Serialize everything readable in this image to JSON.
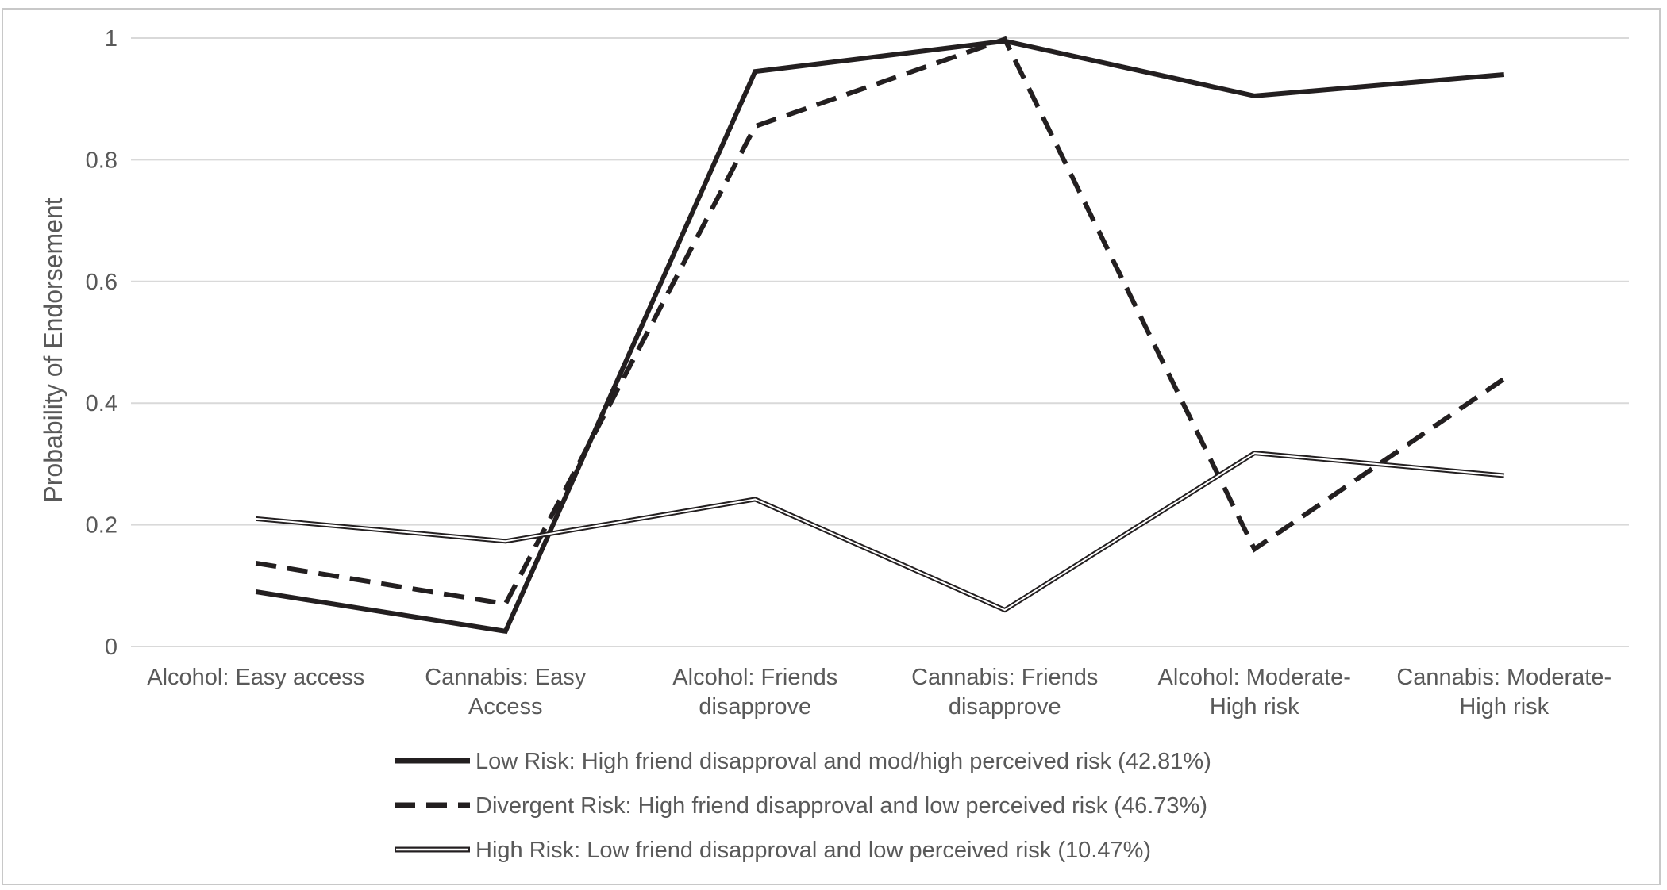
{
  "chart_data": {
    "type": "line",
    "title": "",
    "xlabel": "",
    "ylabel": "Probability of Endorsement",
    "ylim": [
      0,
      1
    ],
    "yticks": [
      "0",
      "0.2",
      "0.4",
      "0.6",
      "0.8",
      "1"
    ],
    "ytick_values": [
      0,
      0.2,
      0.4,
      0.6,
      0.8,
      1
    ],
    "grid": true,
    "legend_position": "bottom",
    "categories": [
      [
        "Alcohol: Easy access"
      ],
      [
        "Cannabis: Easy",
        "Access"
      ],
      [
        "Alcohol: Friends",
        "disapprove"
      ],
      [
        "Cannabis: Friends",
        "disapprove"
      ],
      [
        "Alcohol: Moderate-",
        "High risk"
      ],
      [
        "Cannabis: Moderate-",
        "High risk"
      ]
    ],
    "series": [
      {
        "name": "Low Risk: High friend disapproval and mod/high perceived risk (42.81%)",
        "style": "solid",
        "color": "#231f20",
        "values": [
          0.09,
          0.025,
          0.945,
          0.995,
          0.905,
          0.94
        ]
      },
      {
        "name": "Divergent Risk: High friend disapproval and low perceived risk (46.73%)",
        "style": "dashed",
        "color": "#231f20",
        "values": [
          0.137,
          0.07,
          0.855,
          0.998,
          0.16,
          0.44
        ]
      },
      {
        "name": "High Risk: Low friend disapproval and low perceived risk (10.47%)",
        "style": "double",
        "color": "#231f20",
        "values": [
          0.21,
          0.173,
          0.242,
          0.06,
          0.318,
          0.281
        ]
      }
    ]
  }
}
